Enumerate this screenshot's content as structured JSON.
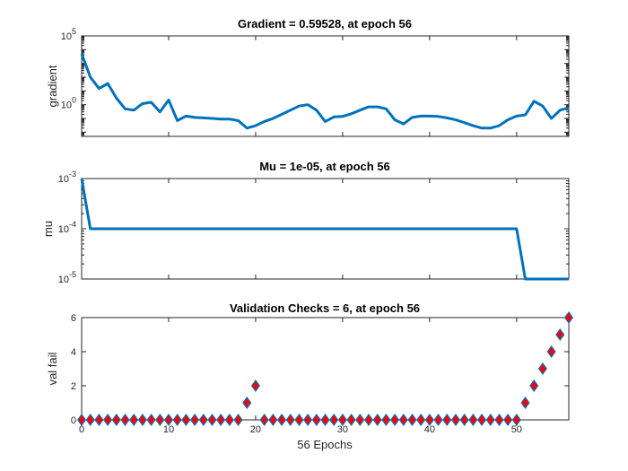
{
  "chart_data": [
    {
      "type": "line",
      "title": "Gradient = 0.59528, at epoch 56",
      "xlabel": "",
      "ylabel": "gradient",
      "yscale": "log",
      "ylim": [
        0.005,
        100000
      ],
      "xlim": [
        0,
        56
      ],
      "ytick_labels": [
        {
          "base": "10",
          "exp": "5"
        },
        {
          "base": "10",
          "exp": "0"
        }
      ],
      "color": "#0072BD",
      "series": [
        {
          "x": [
            0,
            1,
            2,
            3,
            4,
            5,
            6,
            7,
            8,
            9,
            10,
            11,
            12,
            13,
            14,
            15,
            16,
            17,
            18,
            19,
            20,
            21,
            22,
            23,
            24,
            25,
            26,
            27,
            28,
            29,
            30,
            31,
            32,
            33,
            34,
            35,
            36,
            37,
            38,
            39,
            40,
            41,
            42,
            43,
            44,
            45,
            46,
            47,
            48,
            49,
            50,
            51,
            52,
            53,
            54,
            55,
            56
          ],
          "values": [
            5000,
            100,
            15,
            35,
            3,
            0.5,
            0.4,
            1.2,
            1.5,
            0.3,
            2.2,
            0.07,
            0.15,
            0.12,
            0.11,
            0.1,
            0.09,
            0.09,
            0.07,
            0.02,
            0.03,
            0.06,
            0.1,
            0.2,
            0.4,
            0.8,
            1,
            0.4,
            0.06,
            0.13,
            0.14,
            0.22,
            0.4,
            0.7,
            0.7,
            0.5,
            0.08,
            0.04,
            0.12,
            0.15,
            0.15,
            0.14,
            0.11,
            0.08,
            0.05,
            0.03,
            0.02,
            0.02,
            0.03,
            0.08,
            0.15,
            0.18,
            1.8,
            0.8,
            0.1,
            0.4,
            0.59528
          ]
        }
      ]
    },
    {
      "type": "line",
      "title": "Mu = 1e-05, at epoch 56",
      "xlabel": "",
      "ylabel": "mu",
      "yscale": "log",
      "ylim": [
        1e-05,
        0.001
      ],
      "xlim": [
        0,
        56
      ],
      "ytick_labels": [
        {
          "base": "10",
          "exp": "-3"
        },
        {
          "base": "10",
          "exp": "-4"
        },
        {
          "base": "10",
          "exp": "-5"
        }
      ],
      "color": "#0072BD",
      "series": [
        {
          "x": [
            0,
            1,
            2,
            3,
            4,
            5,
            6,
            7,
            8,
            9,
            10,
            11,
            12,
            13,
            14,
            15,
            16,
            17,
            18,
            19,
            20,
            21,
            22,
            23,
            24,
            25,
            26,
            27,
            28,
            29,
            30,
            31,
            32,
            33,
            34,
            35,
            36,
            37,
            38,
            39,
            40,
            41,
            42,
            43,
            44,
            45,
            46,
            47,
            48,
            49,
            50,
            51,
            52,
            53,
            54,
            55,
            56
          ],
          "values": [
            0.001,
            0.0001,
            0.0001,
            0.0001,
            0.0001,
            0.0001,
            0.0001,
            0.0001,
            0.0001,
            0.0001,
            0.0001,
            0.0001,
            0.0001,
            0.0001,
            0.0001,
            0.0001,
            0.0001,
            0.0001,
            0.0001,
            0.0001,
            0.0001,
            0.0001,
            0.0001,
            0.0001,
            0.0001,
            0.0001,
            0.0001,
            0.0001,
            0.0001,
            0.0001,
            0.0001,
            0.0001,
            0.0001,
            0.0001,
            0.0001,
            0.0001,
            0.0001,
            0.0001,
            0.0001,
            0.0001,
            0.0001,
            0.0001,
            0.0001,
            0.0001,
            0.0001,
            0.0001,
            0.0001,
            0.0001,
            0.0001,
            0.0001,
            0.0001,
            1e-05,
            1e-05,
            1e-05,
            1e-05,
            1e-05,
            1e-05
          ]
        }
      ]
    },
    {
      "type": "scatter",
      "title": "Validation Checks = 6, at epoch 56",
      "xlabel": "56 Epochs",
      "ylabel": "val fail",
      "ylim": [
        0,
        6
      ],
      "xlim": [
        0,
        56
      ],
      "yticks": [
        0,
        2,
        4,
        6
      ],
      "xticks": [
        0,
        10,
        20,
        30,
        40,
        50
      ],
      "marker": "diamond",
      "marker_fill": "#FF0000",
      "marker_edge": "#0072BD",
      "series": [
        {
          "x": [
            0,
            1,
            2,
            3,
            4,
            5,
            6,
            7,
            8,
            9,
            10,
            11,
            12,
            13,
            14,
            15,
            16,
            17,
            18,
            19,
            20,
            21,
            22,
            23,
            24,
            25,
            26,
            27,
            28,
            29,
            30,
            31,
            32,
            33,
            34,
            35,
            36,
            37,
            38,
            39,
            40,
            41,
            42,
            43,
            44,
            45,
            46,
            47,
            48,
            49,
            50,
            51,
            52,
            53,
            54,
            55,
            56
          ],
          "values": [
            0,
            0,
            0,
            0,
            0,
            0,
            0,
            0,
            0,
            0,
            0,
            0,
            0,
            0,
            0,
            0,
            0,
            0,
            0,
            1,
            2,
            0,
            0,
            0,
            0,
            0,
            0,
            0,
            0,
            0,
            0,
            0,
            0,
            0,
            0,
            0,
            0,
            0,
            0,
            0,
            0,
            0,
            0,
            0,
            0,
            0,
            0,
            0,
            0,
            0,
            0,
            1,
            2,
            3,
            4,
            5,
            6
          ]
        }
      ]
    }
  ]
}
